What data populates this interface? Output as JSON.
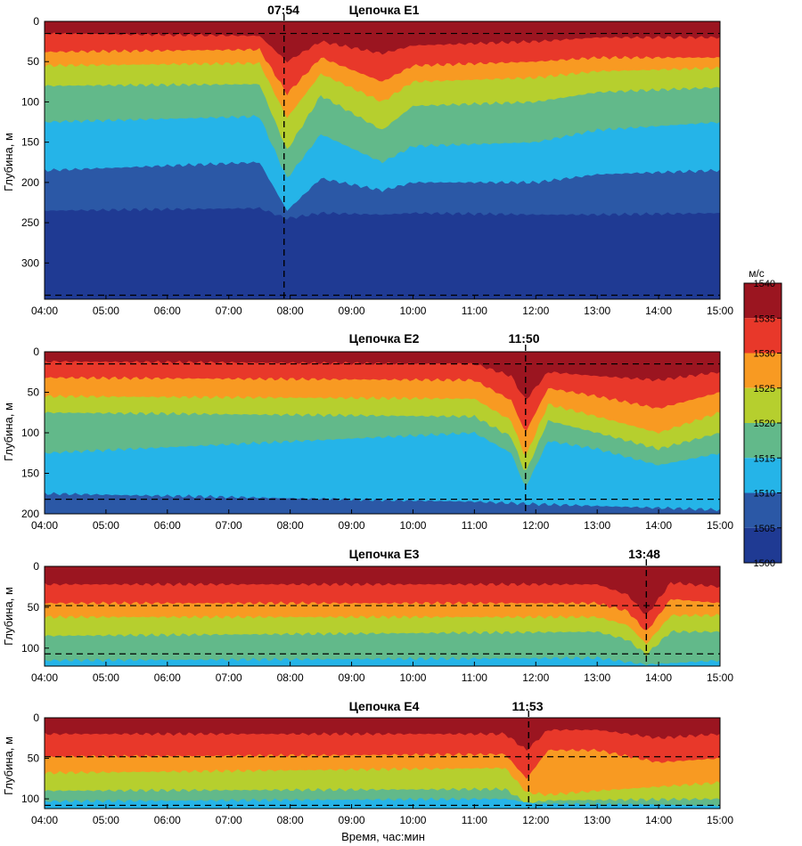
{
  "colorbar": {
    "unit": "м/с",
    "ticks": [
      "1540",
      "1535",
      "1530",
      "1525",
      "1520",
      "1515",
      "1510",
      "1505",
      "1500"
    ],
    "bands": [
      {
        "from": 1535,
        "to": 1540,
        "color": "#9b1520"
      },
      {
        "from": 1530,
        "to": 1535,
        "color": "#e8382a"
      },
      {
        "from": 1525,
        "to": 1530,
        "color": "#f89a22"
      },
      {
        "from": 1520,
        "to": 1525,
        "color": "#b6cf2e"
      },
      {
        "from": 1515,
        "to": 1520,
        "color": "#62b98a"
      },
      {
        "from": 1510,
        "to": 1515,
        "color": "#25b4e8"
      },
      {
        "from": 1505,
        "to": 1510,
        "color": "#2b58a6"
      },
      {
        "from": 1500,
        "to": 1505,
        "color": "#1f3a93"
      }
    ]
  },
  "xlabel": "Время, час:мин",
  "x_ticks": [
    "04:00",
    "05:00",
    "06:00",
    "07:00",
    "08:00",
    "09:00",
    "10:00",
    "11:00",
    "12:00",
    "13:00",
    "14:00",
    "15:00"
  ],
  "chart_data": [
    {
      "type": "heatmap",
      "title": "Цепочка E1",
      "ylabel": "Глубина, м",
      "y_ticks": [
        "0",
        "50",
        "100",
        "150",
        "200",
        "250",
        "300"
      ],
      "ylim": [
        0,
        345
      ],
      "xlim": [
        "04:00",
        "15:00"
      ],
      "event": {
        "time": "07:54",
        "label": "07:54"
      },
      "hlines": [
        15,
        340
      ],
      "isolines_depth_m": {
        "1535": [
          [
            4,
            15
          ],
          [
            7.5,
            18
          ],
          [
            7.95,
            50
          ],
          [
            8.5,
            25
          ],
          [
            9.5,
            40
          ],
          [
            10,
            30
          ],
          [
            12,
            25
          ],
          [
            13,
            20
          ],
          [
            15,
            20
          ]
        ],
        "1530": [
          [
            4,
            38
          ],
          [
            7.5,
            35
          ],
          [
            7.95,
            90
          ],
          [
            8.5,
            45
          ],
          [
            9.5,
            75
          ],
          [
            10,
            55
          ],
          [
            12,
            50
          ],
          [
            13,
            45
          ],
          [
            15,
            45
          ]
        ],
        "1525": [
          [
            4,
            55
          ],
          [
            7.5,
            52
          ],
          [
            7.95,
            120
          ],
          [
            8.5,
            65
          ],
          [
            9.5,
            100
          ],
          [
            10,
            75
          ],
          [
            12,
            70
          ],
          [
            13,
            62
          ],
          [
            15,
            58
          ]
        ],
        "1520": [
          [
            4,
            80
          ],
          [
            7.5,
            78
          ],
          [
            7.95,
            160
          ],
          [
            8.5,
            92
          ],
          [
            9.5,
            135
          ],
          [
            10,
            105
          ],
          [
            12,
            100
          ],
          [
            13,
            88
          ],
          [
            15,
            82
          ]
        ],
        "1515": [
          [
            4,
            125
          ],
          [
            7.5,
            118
          ],
          [
            7.95,
            195
          ],
          [
            8.5,
            140
          ],
          [
            9.5,
            175
          ],
          [
            10,
            155
          ],
          [
            12,
            150
          ],
          [
            13,
            135
          ],
          [
            15,
            125
          ]
        ],
        "1510": [
          [
            4,
            185
          ],
          [
            7.5,
            175
          ],
          [
            7.95,
            235
          ],
          [
            8.5,
            195
          ],
          [
            9.5,
            210
          ],
          [
            10,
            200
          ],
          [
            12,
            200
          ],
          [
            13,
            190
          ],
          [
            15,
            185
          ]
        ],
        "1505": [
          [
            4,
            235
          ],
          [
            7.5,
            232
          ],
          [
            7.95,
            245
          ],
          [
            8.5,
            238
          ],
          [
            9.5,
            240
          ],
          [
            10,
            238
          ],
          [
            12,
            240
          ],
          [
            13,
            240
          ],
          [
            15,
            238
          ]
        ]
      }
    },
    {
      "type": "heatmap",
      "title": "Цепочка E2",
      "ylabel": "Глубина, м",
      "y_ticks": [
        "0",
        "50",
        "100",
        "150",
        "200"
      ],
      "ylim": [
        0,
        200
      ],
      "xlim": [
        "04:00",
        "15:00"
      ],
      "event": {
        "time": "11:50",
        "label": "11:50"
      },
      "hlines": [
        15,
        182
      ],
      "isolines_depth_m": {
        "1535": [
          [
            4,
            12
          ],
          [
            11,
            15
          ],
          [
            11.6,
            30
          ],
          [
            11.83,
            60
          ],
          [
            12.2,
            25
          ],
          [
            13,
            30
          ],
          [
            14,
            35
          ],
          [
            15,
            25
          ]
        ],
        "1530": [
          [
            4,
            32
          ],
          [
            11,
            35
          ],
          [
            11.6,
            60
          ],
          [
            11.83,
            100
          ],
          [
            12.2,
            45
          ],
          [
            13,
            55
          ],
          [
            14,
            70
          ],
          [
            15,
            50
          ]
        ],
        "1525": [
          [
            4,
            55
          ],
          [
            11,
            58
          ],
          [
            11.6,
            85
          ],
          [
            11.83,
            130
          ],
          [
            12.2,
            65
          ],
          [
            13,
            80
          ],
          [
            14,
            100
          ],
          [
            15,
            75
          ]
        ],
        "1520": [
          [
            4,
            75
          ],
          [
            11,
            80
          ],
          [
            11.6,
            105
          ],
          [
            11.83,
            150
          ],
          [
            12.2,
            85
          ],
          [
            13,
            100
          ],
          [
            14,
            120
          ],
          [
            15,
            100
          ]
        ],
        "1515": [
          [
            4,
            125
          ],
          [
            11,
            100
          ],
          [
            11.6,
            125
          ],
          [
            11.83,
            168
          ],
          [
            12.2,
            110
          ],
          [
            13,
            120
          ],
          [
            14,
            140
          ],
          [
            15,
            125
          ]
        ],
        "1510": [
          [
            4,
            175
          ],
          [
            11,
            185
          ],
          [
            12,
            188
          ],
          [
            15,
            195
          ]
        ]
      }
    },
    {
      "type": "heatmap",
      "title": "Цепочка E3",
      "ylabel": "Глубина, м",
      "y_ticks": [
        "0",
        "50",
        "100"
      ],
      "ylim": [
        0,
        122
      ],
      "xlim": [
        "04:00",
        "15:00"
      ],
      "event": {
        "time": "13:48",
        "label": "13:48"
      },
      "hlines": [
        48,
        107
      ],
      "isolines_depth_m": {
        "1535": [
          [
            4,
            22
          ],
          [
            13,
            22
          ],
          [
            13.5,
            35
          ],
          [
            13.8,
            60
          ],
          [
            14.2,
            20
          ],
          [
            15,
            25
          ]
        ],
        "1530": [
          [
            4,
            45
          ],
          [
            13,
            45
          ],
          [
            13.5,
            55
          ],
          [
            13.8,
            80
          ],
          [
            14.2,
            40
          ],
          [
            15,
            45
          ]
        ],
        "1525": [
          [
            4,
            62
          ],
          [
            13,
            62
          ],
          [
            13.5,
            72
          ],
          [
            13.8,
            95
          ],
          [
            14.2,
            60
          ],
          [
            15,
            60
          ]
        ],
        "1520": [
          [
            4,
            85
          ],
          [
            13,
            80
          ],
          [
            13.5,
            90
          ],
          [
            13.8,
            108
          ],
          [
            14.2,
            80
          ],
          [
            15,
            80
          ]
        ],
        "1515": [
          [
            4,
            115
          ],
          [
            13,
            112
          ],
          [
            13.8,
            120
          ],
          [
            15,
            115
          ]
        ]
      }
    },
    {
      "type": "heatmap",
      "title": "Цепочка E4",
      "ylabel": "Глубина, м",
      "y_ticks": [
        "0",
        "50",
        "100"
      ],
      "ylim": [
        0,
        112
      ],
      "xlim": [
        "04:00",
        "15:00"
      ],
      "event": {
        "time": "11:53",
        "label": "11:53"
      },
      "hlines": [
        48,
        108
      ],
      "isolines_depth_m": {
        "1535": [
          [
            4,
            20
          ],
          [
            11.5,
            20
          ],
          [
            11.85,
            40
          ],
          [
            12.2,
            15
          ],
          [
            13,
            15
          ],
          [
            14,
            25
          ],
          [
            15,
            20
          ]
        ],
        "1530": [
          [
            4,
            48
          ],
          [
            11.5,
            45
          ],
          [
            11.85,
            75
          ],
          [
            12.2,
            40
          ],
          [
            13,
            40
          ],
          [
            14,
            55
          ],
          [
            15,
            50
          ]
        ],
        "1525": [
          [
            4,
            68
          ],
          [
            11.5,
            62
          ],
          [
            11.85,
            92
          ],
          [
            12.2,
            95
          ],
          [
            13,
            90
          ],
          [
            14,
            85
          ],
          [
            15,
            80
          ]
        ],
        "1520": [
          [
            4,
            90
          ],
          [
            11.5,
            88
          ],
          [
            11.85,
            105
          ],
          [
            12.2,
            102
          ],
          [
            15,
            100
          ]
        ],
        "1515": [
          [
            4,
            103
          ],
          [
            11.5,
            100
          ],
          [
            12,
            106
          ],
          [
            15,
            108
          ]
        ]
      }
    }
  ]
}
